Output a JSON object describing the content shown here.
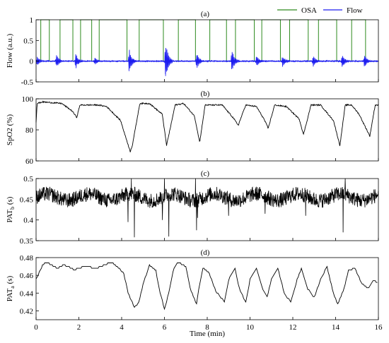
{
  "chart_data": [
    {
      "type": "line",
      "panel_label": "(a)",
      "ylabel": "Flow (a.u.)",
      "xlim": [
        0,
        16
      ],
      "ylim": [
        -0.5,
        1
      ],
      "yticks": [
        "-0.5",
        "0",
        "0.5",
        "1"
      ],
      "ytick_values": [
        -0.5,
        0,
        0.5,
        1
      ],
      "legend": {
        "position": "top-right",
        "entries": [
          {
            "name": "OSA",
            "color": "#2e8b1f"
          },
          {
            "name": "Flow",
            "color": "#1c1cf0"
          }
        ]
      },
      "series": [
        {
          "name": "OSA",
          "color": "#2e8b1f",
          "events": [
            [
              0.22,
              0.62
            ],
            [
              1.12,
              1.72
            ],
            [
              2.08,
              2.6
            ],
            [
              2.95,
              4.25
            ],
            [
              4.82,
              5.95
            ],
            [
              6.65,
              7.45
            ],
            [
              8.12,
              8.9
            ],
            [
              9.32,
              10.2
            ],
            [
              10.55,
              11.42
            ],
            [
              11.85,
              12.72
            ],
            [
              13.2,
              14.05
            ],
            [
              14.75,
              15.4
            ]
          ]
        },
        {
          "name": "Flow",
          "color": "#1c1cf0",
          "bursts": [
            {
              "x": 0.05,
              "amp": 0.12
            },
            {
              "x": 0.95,
              "amp": 0.18
            },
            {
              "x": 1.85,
              "amp": 0.2
            },
            {
              "x": 2.75,
              "amp": 0.1
            },
            {
              "x": 4.35,
              "amp": 0.32
            },
            {
              "x": 6.05,
              "amp": 0.52
            },
            {
              "x": 7.5,
              "amp": 0.22
            },
            {
              "x": 9.15,
              "amp": 0.3
            },
            {
              "x": 10.3,
              "amp": 0.14
            },
            {
              "x": 11.52,
              "amp": 0.15
            },
            {
              "x": 12.95,
              "amp": 0.15
            },
            {
              "x": 14.3,
              "amp": 0.18
            },
            {
              "x": 15.35,
              "amp": 0.18
            }
          ]
        }
      ]
    },
    {
      "type": "line",
      "panel_label": "(b)",
      "ylabel": "SpO2 (%)",
      "xlim": [
        0,
        16
      ],
      "ylim": [
        60,
        100
      ],
      "yticks": [
        "60",
        "80",
        "100"
      ],
      "ytick_values": [
        60,
        80,
        100
      ],
      "series": [
        {
          "name": "SpO2",
          "color": "#000000",
          "x": [
            0,
            0.05,
            0.3,
            1.2,
            1.7,
            1.9,
            2.05,
            2.9,
            3.3,
            3.95,
            4.4,
            4.5,
            4.85,
            5.3,
            5.9,
            6.1,
            6.5,
            6.9,
            7.4,
            7.65,
            7.9,
            8.7,
            9.2,
            9.45,
            9.8,
            10.3,
            10.65,
            10.85,
            11.15,
            11.7,
            12.3,
            12.5,
            12.85,
            13.3,
            13.9,
            14.2,
            14.45,
            14.75,
            15.1,
            15.6,
            15.85
          ],
          "y": [
            85,
            97,
            98,
            97,
            92,
            88,
            96,
            96,
            95,
            86,
            66,
            70,
            97,
            97,
            90,
            70,
            96,
            97,
            89,
            72,
            96,
            96,
            88,
            83,
            96,
            95,
            87,
            81,
            96,
            95,
            87,
            77,
            96,
            96,
            86,
            70,
            96,
            96,
            90,
            76,
            96
          ]
        }
      ]
    },
    {
      "type": "line",
      "panel_label": "(c)",
      "ylabel": "PAT_b (s)",
      "xlim": [
        0,
        16
      ],
      "ylim": [
        0.35,
        0.5
      ],
      "yticks": [
        "0.35",
        "0.4",
        "0.45",
        "0.5"
      ],
      "ytick_values": [
        0.35,
        0.4,
        0.45,
        0.5
      ],
      "series": [
        {
          "name": "PAT_b",
          "color": "#000000",
          "baseline": 0.455,
          "noise": 0.018,
          "spikes": [
            {
              "x": 4.45,
              "y": 0.5
            },
            {
              "x": 4.6,
              "y": 0.358
            },
            {
              "x": 4.3,
              "y": 0.395
            },
            {
              "x": 6.0,
              "y": 0.5
            },
            {
              "x": 6.2,
              "y": 0.36
            },
            {
              "x": 5.9,
              "y": 0.4
            },
            {
              "x": 7.45,
              "y": 0.5
            },
            {
              "x": 7.5,
              "y": 0.375
            },
            {
              "x": 7.55,
              "y": 0.405
            },
            {
              "x": 9.0,
              "y": 0.41
            },
            {
              "x": 10.7,
              "y": 0.415
            },
            {
              "x": 12.6,
              "y": 0.41
            },
            {
              "x": 14.35,
              "y": 0.37
            },
            {
              "x": 14.45,
              "y": 0.5
            }
          ]
        }
      ]
    },
    {
      "type": "line",
      "panel_label": "(d)",
      "ylabel": "PAT_a (s)",
      "xlabel": "Time (min)",
      "xlim": [
        0,
        16
      ],
      "ylim": [
        0.41,
        0.48
      ],
      "yticks": [
        "0.42",
        "0.44",
        "0.46",
        "0.48"
      ],
      "ytick_values": [
        0.42,
        0.44,
        0.46,
        0.48
      ],
      "xticks": [
        "0",
        "2",
        "4",
        "6",
        "8",
        "10",
        "12",
        "14",
        "16"
      ],
      "xtick_values": [
        0,
        2,
        4,
        6,
        8,
        10,
        12,
        14,
        16
      ],
      "series": [
        {
          "name": "PAT_a",
          "color": "#000000",
          "x": [
            0,
            0.1,
            0.3,
            0.5,
            1.0,
            1.3,
            1.5,
            1.8,
            2.0,
            2.3,
            2.8,
            3.2,
            3.5,
            3.8,
            4.1,
            4.3,
            4.6,
            4.8,
            5.0,
            5.3,
            5.6,
            5.8,
            6.0,
            6.2,
            6.4,
            6.6,
            7.0,
            7.2,
            7.5,
            7.6,
            7.8,
            8.1,
            8.4,
            8.8,
            9.0,
            9.3,
            9.5,
            9.8,
            10.0,
            10.3,
            10.6,
            10.8,
            11.0,
            11.3,
            11.6,
            11.9,
            12.2,
            12.4,
            12.7,
            13.0,
            13.3,
            13.6,
            13.9,
            14.1,
            14.4,
            14.6,
            14.9,
            15.2,
            15.5,
            15.8,
            16.0
          ],
          "y": [
            0.455,
            0.46,
            0.472,
            0.475,
            0.468,
            0.472,
            0.47,
            0.466,
            0.468,
            0.47,
            0.468,
            0.472,
            0.475,
            0.47,
            0.462,
            0.44,
            0.424,
            0.43,
            0.45,
            0.472,
            0.465,
            0.44,
            0.422,
            0.44,
            0.465,
            0.475,
            0.47,
            0.445,
            0.428,
            0.445,
            0.468,
            0.462,
            0.442,
            0.43,
            0.455,
            0.468,
            0.445,
            0.43,
            0.455,
            0.468,
            0.445,
            0.435,
            0.455,
            0.468,
            0.44,
            0.43,
            0.455,
            0.468,
            0.445,
            0.435,
            0.455,
            0.47,
            0.44,
            0.428,
            0.445,
            0.465,
            0.468,
            0.452,
            0.445,
            0.455,
            0.45
          ]
        }
      ]
    }
  ]
}
